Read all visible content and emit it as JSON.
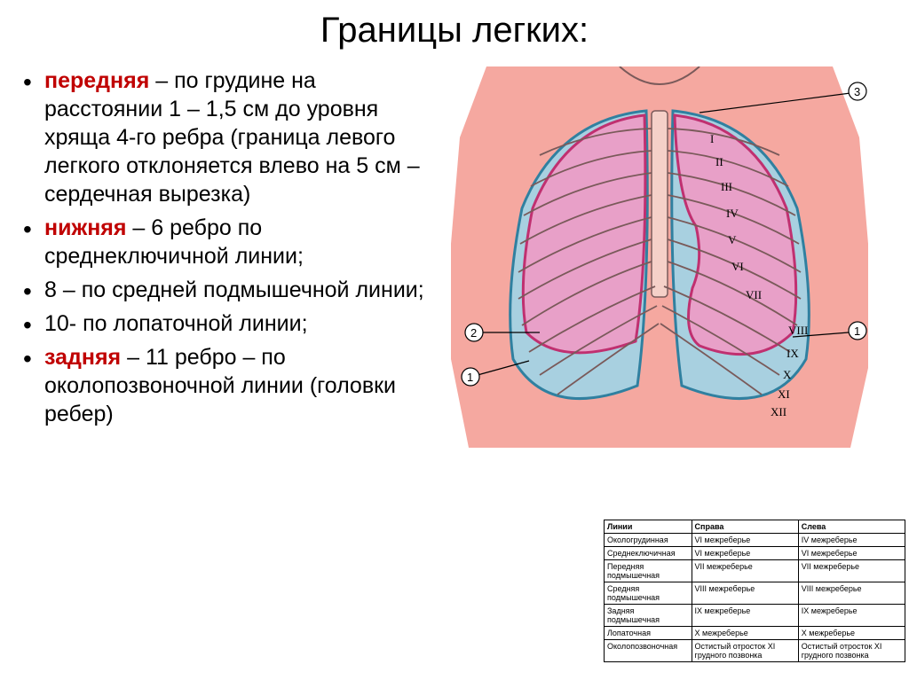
{
  "title": "Границы легких:",
  "bullets": [
    {
      "keyword": "передняя",
      "kw_color": "#c00000",
      "text": " – по грудине на расстоянии 1 – 1,5 см  до уровня хряща 4-го ребра (граница левого легкого отклоняется влево на 5 см – сердечная вырезка)"
    },
    {
      "keyword": "нижняя",
      "kw_color": "#c00000",
      "text": " – 6 ребро  по среднеключичной линии;"
    },
    {
      "keyword": "",
      "kw_color": "#000000",
      "text": "8 – по средней подмышечной линии;"
    },
    {
      "keyword": "",
      "kw_color": "#000000",
      "text": "10- по лопаточной линии;"
    },
    {
      "keyword": "задняя",
      "kw_color": "#c00000",
      "text": " – 11 ребро – по околопозвоночной линии (головки ребер)"
    }
  ],
  "table": {
    "columns": [
      "Линии",
      "Справа",
      "Слева"
    ],
    "rows": [
      [
        "Окологрудинная",
        "VI межреберье",
        "IV межреберье"
      ],
      [
        "Среднеключичная",
        "VI межреберье",
        "VI межреберье"
      ],
      [
        "Передняя подмышечная",
        "VII межреберье",
        "VII межреберье"
      ],
      [
        "Средняя подмышечная",
        "VIII межреберье",
        "VIII межреберье"
      ],
      [
        "Задняя подмышечная",
        "IX межреберье",
        "IX межреберье"
      ],
      [
        "Лопаточная",
        "X межреберье",
        "X межреберье"
      ],
      [
        "Околопозвоночная",
        "Остистый отросток XI грудного позвонка",
        "Остистый отросток XI грудного позвонка"
      ]
    ]
  },
  "diagram": {
    "skin_color": "#f5a8a0",
    "lung_fill": "#e8a0c8",
    "lung_stroke": "#c03070",
    "pleura_fill": "#a8d0e0",
    "pleura_stroke": "#3080a0",
    "rib_stroke": "#7a5a5a",
    "label_font": 13,
    "callouts": [
      "1",
      "2",
      "3"
    ],
    "rib_labels_left": [
      "I",
      "II",
      "III",
      "IV",
      "V",
      "VI",
      "VII"
    ],
    "rib_labels_bottom": [
      "VIII",
      "IX",
      "X",
      "XI",
      "XII"
    ]
  }
}
